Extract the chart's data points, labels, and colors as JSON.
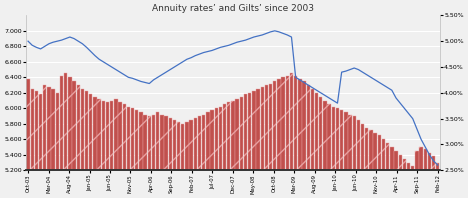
{
  "title": "Annuity rates’ and Gilts’ since 2003",
  "bar_color": "#c0504d",
  "hatch_color": "#e8a0a0",
  "line_color": "#4472c4",
  "background_color": "#f0f0f0",
  "grid_color": "#ffffff",
  "tick_labels": [
    "Oct-03",
    "Mar-04",
    "Aug-04",
    "Jan-05",
    "Jun-05",
    "Nov-05",
    "Apr-06",
    "Sep-06",
    "Feb-07",
    "Jul-07",
    "Dec-07",
    "May-08",
    "Oct-08",
    "Mar-09",
    "Aug-09",
    "Jan-10",
    "Jun-10",
    "Nov-10",
    "Apr-11",
    "Sep-11",
    "Feb-12"
  ],
  "annuity": [
    6.38,
    6.25,
    6.22,
    6.18,
    6.3,
    6.28,
    6.25,
    6.2,
    6.42,
    6.45,
    6.4,
    6.35,
    6.3,
    6.25,
    6.22,
    6.18,
    6.15,
    6.12,
    6.1,
    6.08,
    6.1,
    6.12,
    6.08,
    6.05,
    6.02,
    6.0,
    5.98,
    5.95,
    5.92,
    5.9,
    5.92,
    5.95,
    5.92,
    5.9,
    5.88,
    5.85,
    5.82,
    5.8,
    5.82,
    5.85,
    5.88,
    5.9,
    5.92,
    5.95,
    5.98,
    6.0,
    6.02,
    6.05,
    6.08,
    6.1,
    6.12,
    6.15,
    6.18,
    6.2,
    6.22,
    6.25,
    6.28,
    6.3,
    6.32,
    6.35,
    6.38,
    6.4,
    6.42,
    6.45,
    6.42,
    6.38,
    6.35,
    6.3,
    6.25,
    6.2,
    6.15,
    6.1,
    6.05,
    6.02,
    6.0,
    5.98,
    5.95,
    5.92,
    5.9,
    5.85,
    5.8,
    5.75,
    5.72,
    5.68,
    5.65,
    5.6,
    5.55,
    5.5,
    5.45,
    5.4,
    5.35,
    5.3,
    5.25,
    5.45,
    5.5,
    5.48,
    5.42,
    5.38,
    5.3
  ],
  "gilt": [
    5.0,
    4.92,
    4.88,
    4.85,
    4.9,
    4.95,
    4.98,
    5.0,
    5.02,
    5.05,
    5.08,
    5.05,
    5.0,
    4.95,
    4.88,
    4.8,
    4.72,
    4.65,
    4.6,
    4.55,
    4.5,
    4.45,
    4.4,
    4.35,
    4.3,
    4.28,
    4.25,
    4.22,
    4.2,
    4.18,
    4.25,
    4.3,
    4.35,
    4.4,
    4.45,
    4.5,
    4.55,
    4.6,
    4.65,
    4.68,
    4.72,
    4.75,
    4.78,
    4.8,
    4.82,
    4.85,
    4.88,
    4.9,
    4.92,
    4.95,
    4.98,
    5.0,
    5.02,
    5.05,
    5.08,
    5.1,
    5.12,
    5.15,
    5.18,
    5.2,
    5.18,
    5.15,
    5.12,
    5.08,
    4.3,
    4.25,
    4.2,
    4.15,
    4.1,
    4.05,
    4.0,
    3.95,
    3.9,
    3.85,
    3.8,
    4.4,
    4.42,
    4.45,
    4.48,
    4.45,
    4.4,
    4.35,
    4.3,
    4.25,
    4.2,
    4.15,
    4.1,
    4.05,
    3.9,
    3.8,
    3.7,
    3.6,
    3.5,
    3.3,
    3.1,
    2.95,
    2.8,
    2.68,
    2.6
  ],
  "ylim_left": [
    5.2,
    7.2
  ],
  "ylim_right": [
    2.5,
    5.5
  ],
  "left_ticks": [
    5.2,
    5.4,
    5.6,
    5.8,
    6.0,
    6.2,
    6.4,
    6.6,
    6.8,
    7.0
  ],
  "right_ticks": [
    2.5,
    3.0,
    3.5,
    4.0,
    4.5,
    5.0,
    5.5
  ],
  "title_fontsize": 6.5,
  "tick_fontsize": 4.5,
  "xtick_fontsize": 3.8
}
